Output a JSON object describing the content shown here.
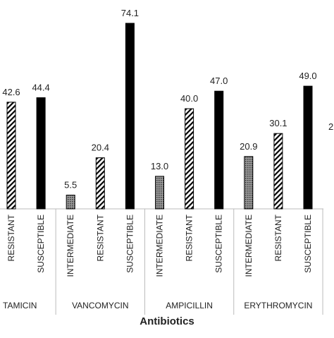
{
  "chart_data": {
    "type": "bar",
    "x_label": "Antibiotics",
    "groups": [
      {
        "label": "TAMICIN",
        "categories": [
          "RESISTANT",
          "SUSCEPTIBLE"
        ],
        "values": [
          42.6,
          44.4
        ],
        "value_labels": [
          "42.6",
          "44.4"
        ],
        "styles": [
          "hatch",
          "solid"
        ]
      },
      {
        "label": "VANCOMYCIN",
        "categories": [
          "INTERMEDIATE",
          "RESISTANT",
          "SUSCEPTIBLE"
        ],
        "values": [
          5.5,
          20.4,
          74.1
        ],
        "value_labels": [
          "5.5",
          "20.4",
          "74.1"
        ],
        "styles": [
          "dots",
          "hatch",
          "solid"
        ]
      },
      {
        "label": "AMPICILLIN",
        "categories": [
          "INTERMEDIATE",
          "RESISTANT",
          "SUSCEPTIBLE"
        ],
        "values": [
          13.0,
          40.0,
          47.0
        ],
        "value_labels": [
          "13.0",
          "40.0",
          "47.0"
        ],
        "styles": [
          "dots",
          "hatch",
          "solid"
        ]
      },
      {
        "label": "ERYTHROMYCIN",
        "categories": [
          "INTERMEDIATE",
          "RESISTANT",
          "SUSCEPTIBLE"
        ],
        "values": [
          20.9,
          30.1,
          49.0
        ],
        "value_labels": [
          "20.9",
          "30.1",
          "49.0"
        ],
        "styles": [
          "dots",
          "hatch",
          "solid"
        ]
      }
    ],
    "annotations": [
      {
        "text": "2"
      }
    ],
    "color": "#000000"
  }
}
